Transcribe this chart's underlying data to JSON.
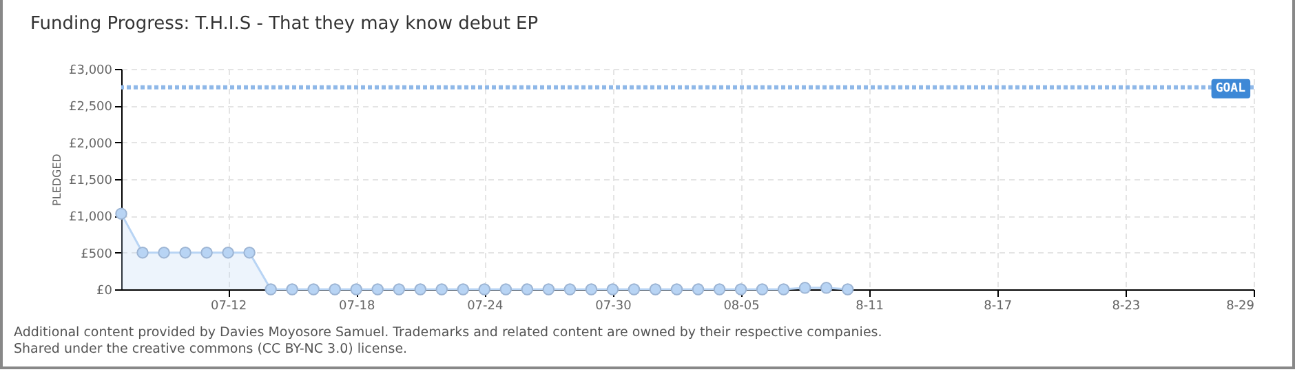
{
  "chart_data": {
    "type": "area",
    "title": "Funding Progress: T.H.I.S - That they may know debut EP",
    "ylabel": "PLEDGED",
    "x": [
      "--07-07",
      "--07-08",
      "--07-09",
      "--07-10",
      "--07-11",
      "--07-12",
      "--07-13",
      "--07-14",
      "--07-15",
      "--07-16",
      "--07-17",
      "--07-18",
      "--07-19",
      "--07-20",
      "--07-21",
      "--07-22",
      "--07-23",
      "--07-24",
      "--07-25",
      "--07-26",
      "--07-27",
      "--07-28",
      "--07-29",
      "--07-30",
      "--07-31",
      "--08-01",
      "--08-02",
      "--08-03",
      "--08-04",
      "--08-05",
      "--08-06",
      "--08-07",
      "--08-08",
      "--08-09",
      "--08-10"
    ],
    "series": [
      {
        "color": "#b8d4f4",
        "values": [
          1030,
          500,
          500,
          500,
          500,
          500,
          500,
          0,
          0,
          0,
          0,
          0,
          0,
          0,
          0,
          0,
          0,
          0,
          0,
          0,
          0,
          0,
          0,
          0,
          0,
          0,
          0,
          0,
          0,
          0,
          0,
          0,
          20,
          20,
          0
        ]
      }
    ],
    "marker": "circle",
    "grid": true,
    "xlim": [
      "--07-07",
      "--08-29"
    ],
    "xticks": [
      {
        "value": "--07-12",
        "label": "07-12"
      },
      {
        "value": "--07-18",
        "label": "07-18"
      },
      {
        "value": "--07-24",
        "label": "07-24"
      },
      {
        "value": "--07-30",
        "label": "07-30"
      },
      {
        "value": "--08-05",
        "label": "08-05"
      },
      {
        "value": "--08-11",
        "label": "8-11"
      },
      {
        "value": "--08-17",
        "label": "8-17"
      },
      {
        "value": "--08-23",
        "label": "8-23"
      },
      {
        "value": "--08-29",
        "label": "8-29"
      }
    ],
    "ylim": [
      0,
      3000
    ],
    "yticks": [
      {
        "value": 0,
        "label": "£0"
      },
      {
        "value": 500,
        "label": "£500"
      },
      {
        "value": 1000,
        "label": "£1,000"
      },
      {
        "value": 1500,
        "label": "£1,500"
      },
      {
        "value": 2000,
        "label": "£2,000"
      },
      {
        "value": 2500,
        "label": "£2,500"
      },
      {
        "value": 3000,
        "label": "£3,000"
      }
    ],
    "ref_lines": [
      {
        "axis": "y",
        "value": 2750,
        "label": "GOAL",
        "color": "#8fb8e8",
        "line_style": "dotted"
      }
    ],
    "annotations": [
      "Additional content provided by Davies Moyosore Samuel. Trademarks and related content are owned by their respective companies.",
      "Shared under the creative commons (CC BY-NC 3.0) license."
    ]
  }
}
